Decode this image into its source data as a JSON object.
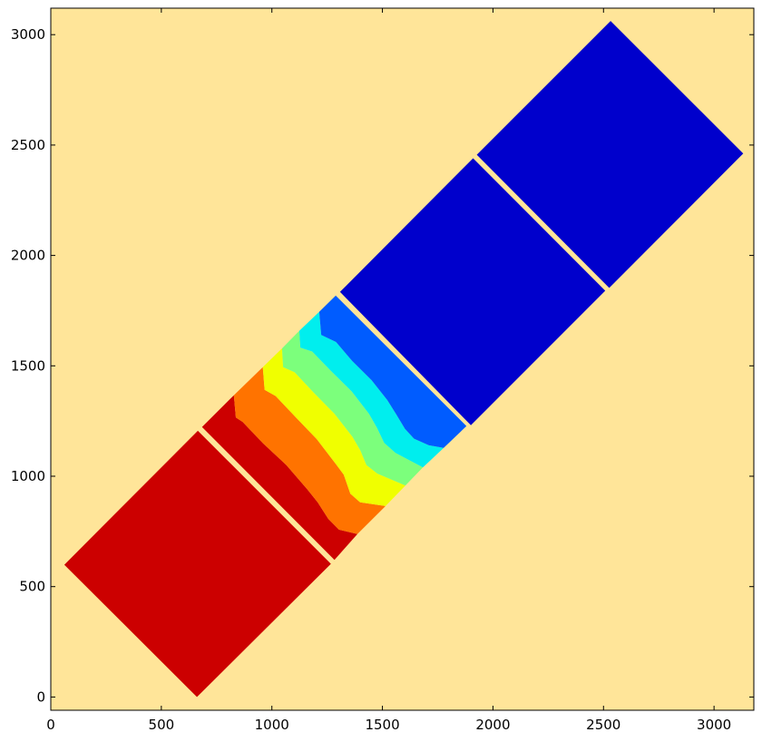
{
  "chart_data": {
    "type": "area",
    "title": "",
    "xlabel": "",
    "ylabel": "",
    "xlim": [
      0,
      3180
    ],
    "ylim": [
      -60,
      3120
    ],
    "xticks": [
      0,
      500,
      1000,
      1500,
      2000,
      2500,
      3000
    ],
    "yticks": [
      0,
      500,
      1000,
      1500,
      2000,
      2500,
      3000
    ],
    "xtick_labels": [
      "0",
      "500",
      "1000",
      "1500",
      "2000",
      "2500",
      "3000"
    ],
    "ytick_labels": [
      "0",
      "500",
      "1000",
      "1500",
      "2000",
      "2500",
      "3000"
    ],
    "grid": false,
    "background_color": "#ffe599",
    "polygons": [
      {
        "color": "#cc0000",
        "points": [
          [
            61,
            599
          ],
          [
            665,
            1206
          ],
          [
            1267,
            603
          ],
          [
            661,
            0
          ]
        ]
      },
      {
        "color": "#0000cc",
        "points": [
          [
            1308,
            1835
          ],
          [
            1910,
            2440
          ],
          [
            2508,
            1840
          ],
          [
            1900,
            1231
          ]
        ]
      },
      {
        "color": "#0000cc",
        "points": [
          [
            1927,
            2456
          ],
          [
            2532,
            3062
          ],
          [
            3132,
            2462
          ],
          [
            2526,
            1853
          ]
        ]
      },
      {
        "color": "#cc0000",
        "points": [
          [
            684,
            1223
          ],
          [
            828,
            1367
          ],
          [
            837,
            1266
          ],
          [
            868,
            1246
          ],
          [
            960,
            1149
          ],
          [
            1065,
            1051
          ],
          [
            1160,
            941
          ],
          [
            1207,
            882
          ],
          [
            1255,
            807
          ],
          [
            1303,
            758
          ],
          [
            1387,
            738
          ],
          [
            1283,
            621
          ]
        ]
      },
      {
        "color": "#ff7300",
        "points": [
          [
            828,
            1367
          ],
          [
            959,
            1494
          ],
          [
            967,
            1391
          ],
          [
            1017,
            1363
          ],
          [
            1107,
            1268
          ],
          [
            1203,
            1168
          ],
          [
            1287,
            1058
          ],
          [
            1325,
            1007
          ],
          [
            1355,
            921
          ],
          [
            1399,
            882
          ],
          [
            1514,
            865
          ],
          [
            1387,
            738
          ],
          [
            1303,
            758
          ],
          [
            1255,
            807
          ],
          [
            1207,
            882
          ],
          [
            1160,
            941
          ],
          [
            1065,
            1051
          ],
          [
            960,
            1149
          ],
          [
            868,
            1246
          ],
          [
            837,
            1266
          ]
        ]
      },
      {
        "color": "#f0ff00",
        "points": [
          [
            959,
            1494
          ],
          [
            1046,
            1579
          ],
          [
            1051,
            1494
          ],
          [
            1103,
            1471
          ],
          [
            1188,
            1380
          ],
          [
            1283,
            1283
          ],
          [
            1365,
            1178
          ],
          [
            1400,
            1117
          ],
          [
            1428,
            1050
          ],
          [
            1477,
            1012
          ],
          [
            1604,
            958
          ],
          [
            1514,
            865
          ],
          [
            1399,
            882
          ],
          [
            1355,
            921
          ],
          [
            1325,
            1007
          ],
          [
            1287,
            1058
          ],
          [
            1203,
            1168
          ],
          [
            1107,
            1268
          ],
          [
            1017,
            1363
          ],
          [
            967,
            1391
          ]
        ]
      },
      {
        "color": "#7cff7c",
        "points": [
          [
            1046,
            1579
          ],
          [
            1124,
            1658
          ],
          [
            1129,
            1582
          ],
          [
            1182,
            1565
          ],
          [
            1263,
            1481
          ],
          [
            1361,
            1384
          ],
          [
            1439,
            1283
          ],
          [
            1476,
            1218
          ],
          [
            1508,
            1151
          ],
          [
            1559,
            1106
          ],
          [
            1683,
            1040
          ],
          [
            1604,
            958
          ],
          [
            1477,
            1012
          ],
          [
            1428,
            1050
          ],
          [
            1400,
            1117
          ],
          [
            1365,
            1178
          ],
          [
            1283,
            1283
          ],
          [
            1188,
            1380
          ],
          [
            1103,
            1471
          ],
          [
            1051,
            1494
          ]
        ]
      },
      {
        "color": "#00eeee",
        "points": [
          [
            1124,
            1658
          ],
          [
            1214,
            1745
          ],
          [
            1223,
            1640
          ],
          [
            1290,
            1608
          ],
          [
            1363,
            1522
          ],
          [
            1451,
            1435
          ],
          [
            1522,
            1345
          ],
          [
            1562,
            1281
          ],
          [
            1602,
            1215
          ],
          [
            1643,
            1170
          ],
          [
            1710,
            1140
          ],
          [
            1777,
            1128
          ],
          [
            1683,
            1040
          ],
          [
            1559,
            1106
          ],
          [
            1508,
            1151
          ],
          [
            1476,
            1218
          ],
          [
            1439,
            1283
          ],
          [
            1361,
            1384
          ],
          [
            1263,
            1481
          ],
          [
            1182,
            1565
          ],
          [
            1129,
            1582
          ]
        ]
      },
      {
        "color": "#005cff",
        "points": [
          [
            1214,
            1745
          ],
          [
            1289,
            1818
          ],
          [
            1880,
            1227
          ],
          [
            1777,
            1128
          ],
          [
            1710,
            1140
          ],
          [
            1643,
            1170
          ],
          [
            1602,
            1215
          ],
          [
            1562,
            1281
          ],
          [
            1522,
            1345
          ],
          [
            1451,
            1435
          ],
          [
            1363,
            1522
          ],
          [
            1290,
            1608
          ],
          [
            1223,
            1640
          ]
        ]
      }
    ]
  }
}
